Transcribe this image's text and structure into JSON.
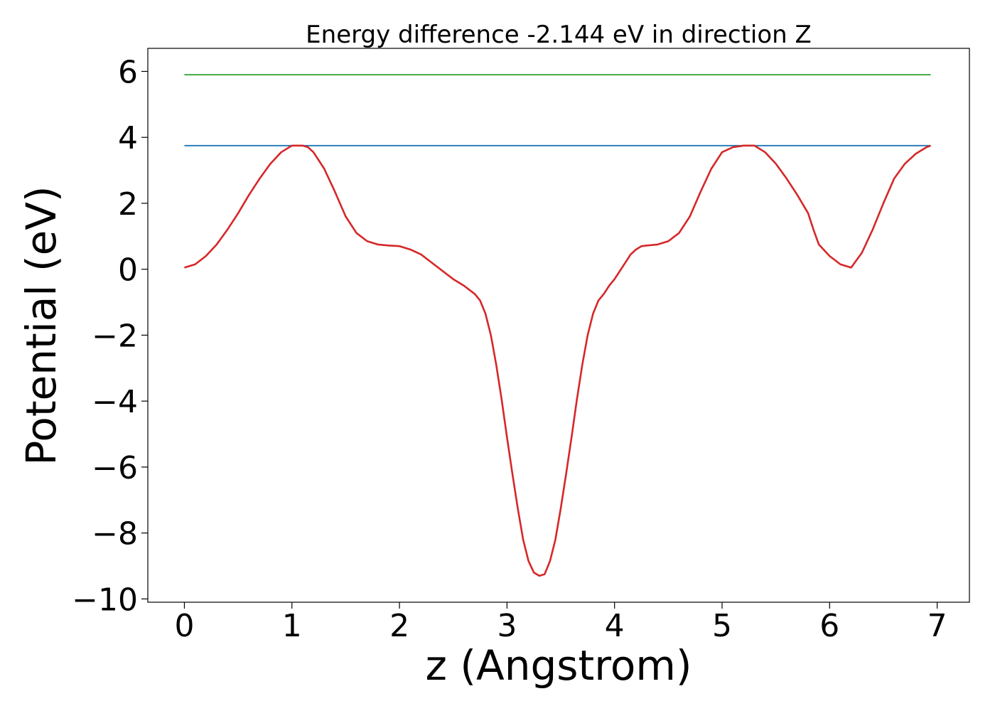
{
  "chart_data": {
    "type": "line",
    "title": "Energy difference -2.144 eV in direction Z",
    "xlabel": "z (Angstrom)",
    "ylabel": "Potential (eV)",
    "xlim": [
      -0.34,
      7.3
    ],
    "ylim": [
      -10.1,
      6.7
    ],
    "xticks": [
      0,
      1,
      2,
      3,
      4,
      5,
      6,
      7
    ],
    "xtick_labels": [
      "0",
      "1",
      "2",
      "3",
      "4",
      "5",
      "6",
      "7"
    ],
    "yticks": [
      -10,
      -8,
      -6,
      -4,
      -2,
      0,
      2,
      4,
      6
    ],
    "ytick_labels": [
      "−10",
      "−8",
      "−6",
      "−4",
      "−2",
      "0",
      "2",
      "4",
      "6"
    ],
    "grid": false,
    "series": [
      {
        "color": "#2ca02c",
        "x": [
          0,
          6.94
        ],
        "y": [
          5.9,
          5.9
        ]
      },
      {
        "color": "#1f77b4",
        "x": [
          0,
          6.94
        ],
        "y": [
          3.75,
          3.75
        ]
      },
      {
        "color": "#d62728",
        "x": [
          0,
          0.1,
          0.2,
          0.3,
          0.4,
          0.5,
          0.6,
          0.7,
          0.8,
          0.9,
          1.0,
          1.1,
          1.15,
          1.2,
          1.3,
          1.4,
          1.5,
          1.6,
          1.7,
          1.8,
          1.9,
          2.0,
          2.1,
          2.2,
          2.3,
          2.4,
          2.5,
          2.6,
          2.7,
          2.75,
          2.8,
          2.85,
          2.9,
          2.95,
          3.0,
          3.05,
          3.1,
          3.15,
          3.2,
          3.25,
          3.3,
          3.35,
          3.4,
          3.45,
          3.5,
          3.55,
          3.6,
          3.65,
          3.7,
          3.75,
          3.8,
          3.85,
          3.9,
          3.95,
          4.0,
          4.05,
          4.1,
          4.15,
          4.2,
          4.25,
          4.3,
          4.4,
          4.5,
          4.6,
          4.7,
          4.8,
          4.9,
          5.0,
          5.1,
          5.2,
          5.3,
          5.4,
          5.5,
          5.6,
          5.7,
          5.8,
          5.85,
          5.9,
          6.0,
          6.1,
          6.2,
          6.3,
          6.4,
          6.5,
          6.6,
          6.7,
          6.8,
          6.9,
          6.94
        ],
        "y": [
          0.05,
          0.15,
          0.4,
          0.75,
          1.2,
          1.7,
          2.25,
          2.75,
          3.2,
          3.55,
          3.75,
          3.75,
          3.7,
          3.55,
          3.05,
          2.35,
          1.6,
          1.1,
          0.85,
          0.75,
          0.72,
          0.7,
          0.6,
          0.45,
          0.2,
          -0.05,
          -0.3,
          -0.5,
          -0.75,
          -0.95,
          -1.35,
          -2.0,
          -2.9,
          -3.95,
          -5.1,
          -6.2,
          -7.25,
          -8.2,
          -8.85,
          -9.2,
          -9.3,
          -9.25,
          -8.85,
          -8.2,
          -7.25,
          -6.2,
          -5.1,
          -3.95,
          -2.9,
          -2.0,
          -1.35,
          -0.95,
          -0.75,
          -0.5,
          -0.3,
          -0.05,
          0.2,
          0.45,
          0.6,
          0.7,
          0.72,
          0.75,
          0.85,
          1.1,
          1.6,
          2.35,
          3.05,
          3.55,
          3.7,
          3.75,
          3.75,
          3.55,
          3.2,
          2.75,
          2.25,
          1.7,
          1.2,
          0.75,
          0.4,
          0.15,
          0.05,
          0.5,
          1.2,
          2.0,
          2.75,
          3.2,
          3.5,
          3.7,
          3.75
        ]
      }
    ]
  }
}
